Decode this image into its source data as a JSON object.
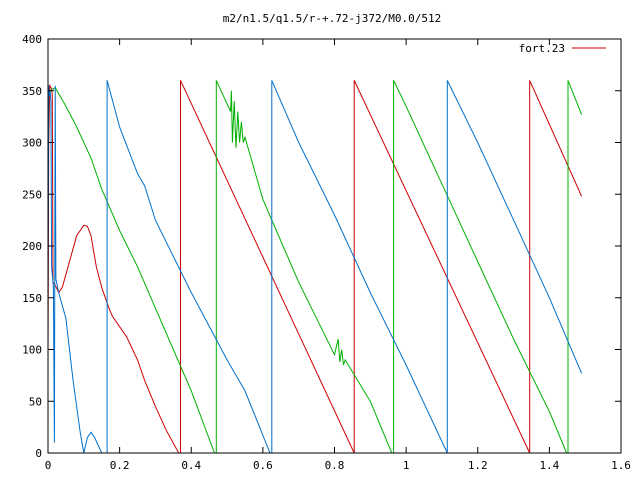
{
  "chart_data": {
    "type": "line",
    "title": "m2/n1.5/q1.5/r-+.72-j372/M0.0/512",
    "xlim": [
      0,
      1.6
    ],
    "ylim": [
      0,
      400
    ],
    "xticks": [
      0,
      0.2,
      0.4,
      0.6,
      0.8,
      1,
      1.2,
      1.4,
      1.6
    ],
    "xtick_labels": [
      "0",
      "0.2",
      "0.4",
      "0.6",
      "0.8",
      "1",
      "1.2",
      "1.4",
      "1.6"
    ],
    "yticks": [
      0,
      50,
      100,
      150,
      200,
      250,
      300,
      350,
      400
    ],
    "ytick_labels": [
      "0",
      "50",
      "100",
      "150",
      "200",
      "250",
      "300",
      "350",
      "400"
    ],
    "grid": false,
    "legend": {
      "position": "top-right",
      "entries": [
        "fort.23"
      ]
    },
    "series": [
      {
        "name": "fort.23",
        "color": "#cc0000",
        "segments": [
          [
            [
              0.0,
              90
            ],
            [
              0.002,
              300
            ],
            [
              0.005,
              355
            ],
            [
              0.01,
              352
            ],
            [
              0.012,
              345
            ],
            [
              0.014,
              165
            ],
            [
              0.02,
              162
            ],
            [
              0.03,
              155
            ],
            [
              0.04,
              160
            ],
            [
              0.06,
              185
            ],
            [
              0.08,
              210
            ],
            [
              0.1,
              220
            ],
            [
              0.11,
              219
            ],
            [
              0.12,
              210
            ],
            [
              0.135,
              180
            ],
            [
              0.15,
              160
            ],
            [
              0.17,
              140
            ],
            [
              0.18,
              132
            ],
            [
              0.2,
              122
            ],
            [
              0.22,
              112
            ],
            [
              0.25,
              90
            ],
            [
              0.27,
              70
            ],
            [
              0.3,
              45
            ],
            [
              0.33,
              22
            ],
            [
              0.365,
              0
            ]
          ],
          [
            [
              0.37,
              0
            ],
            [
              0.37,
              360
            ],
            [
              0.855,
              0
            ]
          ],
          [
            [
              0.855,
              0
            ],
            [
              0.855,
              360
            ],
            [
              1.345,
              0
            ]
          ],
          [
            [
              1.345,
              0
            ],
            [
              1.345,
              360
            ],
            [
              1.49,
              248
            ]
          ]
        ]
      },
      {
        "name": "",
        "color": "#00b000",
        "segments": [
          [
            [
              0.005,
              350
            ],
            [
              0.02,
              353
            ],
            [
              0.05,
              335
            ],
            [
              0.08,
              315
            ],
            [
              0.12,
              285
            ],
            [
              0.15,
              255
            ],
            [
              0.2,
              215
            ],
            [
              0.25,
              180
            ],
            [
              0.3,
              140
            ],
            [
              0.35,
              100
            ],
            [
              0.4,
              60
            ],
            [
              0.465,
              0
            ]
          ],
          [
            [
              0.47,
              0
            ],
            [
              0.47,
              360
            ],
            [
              0.51,
              330
            ],
            [
              0.512,
              350
            ],
            [
              0.515,
              300
            ],
            [
              0.52,
              340
            ],
            [
              0.525,
              295
            ],
            [
              0.53,
              330
            ],
            [
              0.535,
              300
            ],
            [
              0.54,
              320
            ],
            [
              0.545,
              300
            ],
            [
              0.55,
              305
            ],
            [
              0.6,
              245
            ],
            [
              0.7,
              165
            ],
            [
              0.8,
              95
            ],
            [
              0.81,
              110
            ],
            [
              0.815,
              88
            ],
            [
              0.82,
              100
            ],
            [
              0.825,
              85
            ],
            [
              0.83,
              90
            ],
            [
              0.9,
              50
            ],
            [
              0.96,
              0
            ]
          ],
          [
            [
              0.965,
              0
            ],
            [
              0.965,
              360
            ],
            [
              1.0,
              335
            ],
            [
              1.1,
              260
            ],
            [
              1.2,
              185
            ],
            [
              1.3,
              110
            ],
            [
              1.4,
              40
            ],
            [
              1.448,
              0
            ]
          ],
          [
            [
              1.452,
              0
            ],
            [
              1.452,
              360
            ],
            [
              1.49,
              327
            ]
          ]
        ]
      },
      {
        "name": "",
        "color": "#0070cc",
        "segments": [
          [
            [
              0.0,
              160
            ],
            [
              0.002,
              355
            ],
            [
              0.004,
              345
            ],
            [
              0.006,
              350
            ],
            [
              0.008,
              340
            ],
            [
              0.01,
              180
            ],
            [
              0.015,
              160
            ],
            [
              0.018,
              10
            ],
            [
              0.02,
              355
            ],
            [
              0.022,
              168
            ],
            [
              0.03,
              155
            ],
            [
              0.05,
              130
            ],
            [
              0.07,
              70
            ],
            [
              0.09,
              20
            ],
            [
              0.1,
              0
            ],
            [
              0.11,
              15
            ],
            [
              0.12,
              20
            ],
            [
              0.13,
              15
            ],
            [
              0.15,
              0
            ],
            [
              0.16,
              0
            ]
          ],
          [
            [
              0.165,
              0
            ],
            [
              0.165,
              360
            ],
            [
              0.2,
              315
            ],
            [
              0.25,
              270
            ],
            [
              0.27,
              258
            ],
            [
              0.3,
              225
            ],
            [
              0.35,
              190
            ],
            [
              0.4,
              155
            ],
            [
              0.5,
              90
            ],
            [
              0.55,
              60
            ],
            [
              0.62,
              0
            ]
          ],
          [
            [
              0.625,
              0
            ],
            [
              0.625,
              360
            ],
            [
              0.7,
              300
            ],
            [
              0.8,
              230
            ],
            [
              0.9,
              155
            ],
            [
              1.0,
              85
            ],
            [
              1.115,
              0
            ]
          ],
          [
            [
              1.115,
              0
            ],
            [
              1.115,
              360
            ],
            [
              1.2,
              300
            ],
            [
              1.3,
              225
            ],
            [
              1.4,
              150
            ],
            [
              1.49,
              77
            ]
          ]
        ]
      }
    ]
  }
}
